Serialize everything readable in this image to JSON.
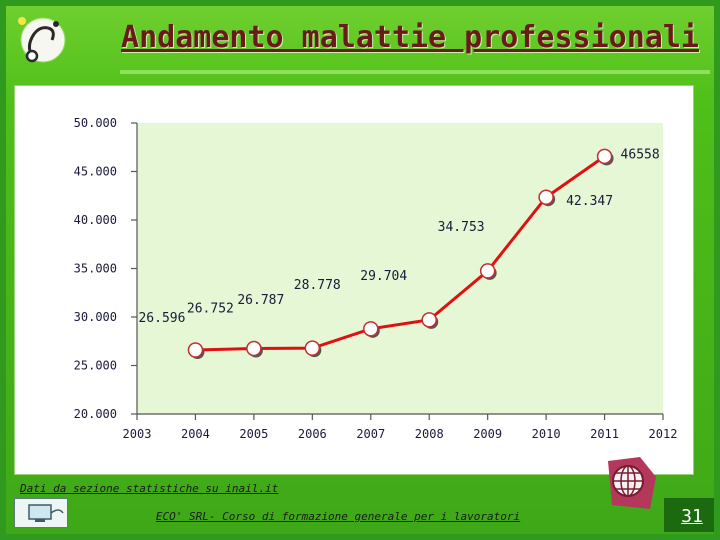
{
  "slide": {
    "title": "Andamento malattie professionali",
    "source_note": "Dati da sezione statistiche su inail.it",
    "footer": "ECO' SRL- Corso di formazione generale per i lavoratori",
    "page_number": "31"
  },
  "colors": {
    "background": "#3fa818",
    "plot_area": "#e6f7d6",
    "line": "#e01010",
    "title": "#6a1a1a"
  },
  "icons": {
    "top_left": "stethoscope-icon",
    "bottom_left": "computer-icon",
    "bottom_right": "globe-logo-icon"
  },
  "chart_data": {
    "type": "line",
    "title": "",
    "xlabel": "",
    "ylabel": "",
    "x": [
      "2003",
      "2004",
      "2005",
      "2006",
      "2007",
      "2008",
      "2009",
      "2010",
      "2011",
      "2012"
    ],
    "y_ticks": [
      "50.000",
      "45.000",
      "40.000",
      "35.000",
      "30.000",
      "25.000",
      "20.000"
    ],
    "ylim": [
      20000,
      50000
    ],
    "grid": false,
    "legend": "none",
    "series": [
      {
        "name": "",
        "points": [
          {
            "x": "2004",
            "y": 26596,
            "label": "26.596"
          },
          {
            "x": "2005",
            "y": 26752,
            "label": "26.752"
          },
          {
            "x": "2006",
            "y": 26787,
            "label": "26.787"
          },
          {
            "x": "2007",
            "y": 28778,
            "label": "28.778"
          },
          {
            "x": "2008",
            "y": 29704,
            "label": "29.704"
          },
          {
            "x": "2009",
            "y": 34753,
            "label": "34.753"
          },
          {
            "x": "2010",
            "y": 42347,
            "label": "42.347"
          },
          {
            "x": "2011",
            "y": 46558,
            "label": "46558"
          }
        ]
      }
    ]
  }
}
